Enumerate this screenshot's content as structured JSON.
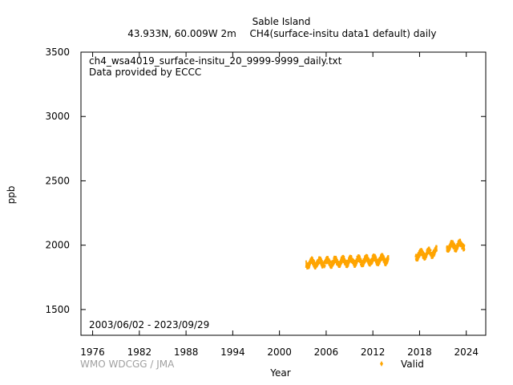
{
  "header": {
    "station": "Sable Island",
    "location": "43.933N, 60.009W 2m",
    "dataset": "CH4(surface-insitu data1 default) daily"
  },
  "file_name": "ch4_wsa4019_surface-insitu_20_9999-9999_daily.txt",
  "provider": "Data provided by ECCC",
  "date_range": "2003/06/02 - 2023/09/29",
  "credit": "WMO WDCGG / JMA",
  "legend": {
    "valid_label": "Valid",
    "marker_color": "#ffa500"
  },
  "colors": {
    "series": "#ffa500",
    "axis": "#000000",
    "credit": "#a0a0a0"
  },
  "chart_data": {
    "type": "scatter",
    "title": "Sable Island",
    "xlabel": "Year",
    "ylabel": "ppb",
    "xlim": [
      1974.5,
      2026.5
    ],
    "ylim": [
      1300,
      3500
    ],
    "xticks": [
      1976,
      1982,
      1988,
      1994,
      2000,
      2006,
      2012,
      2018,
      2024
    ],
    "yticks": [
      1500,
      2000,
      2500,
      3000,
      3500
    ],
    "grid": false,
    "legend_position": "bottom-right",
    "series": [
      {
        "name": "Valid",
        "color": "#ffa500",
        "segments": [
          {
            "x_start": 2003.42,
            "x_end": 2014.0,
            "y_low": [
              1815,
              1945
            ],
            "y_start_mean": 1858,
            "y_end_mean": 1890
          },
          {
            "x_start": 2017.5,
            "x_end": 2020.2,
            "y_low": [
              1880,
              2010
            ],
            "y_start_mean": 1920,
            "y_end_mean": 1950
          },
          {
            "x_start": 2021.5,
            "x_end": 2023.75,
            "y_low": [
              1940,
              2065
            ],
            "y_start_mean": 1985,
            "y_end_mean": 2005
          }
        ]
      }
    ]
  }
}
